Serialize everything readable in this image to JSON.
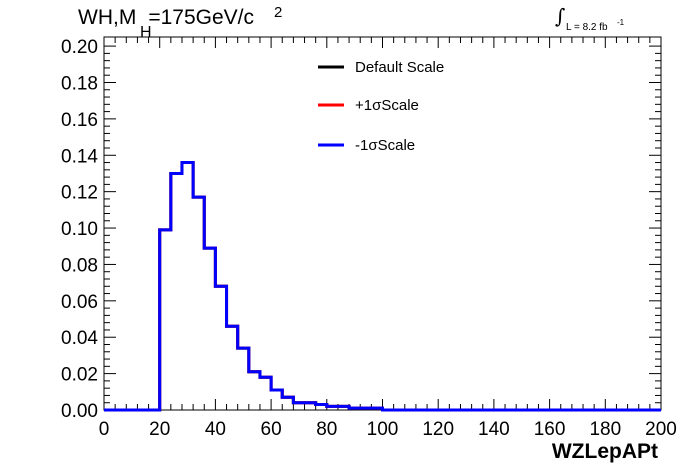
{
  "header": {
    "title_left": "WH,M",
    "title_sub": "H",
    "title_right": "=175GeV/c",
    "title_sup": "2",
    "lumi_integral": "∫",
    "lumi_text": "L = 8.2 fb",
    "lumi_sup": "-1"
  },
  "chart_data": {
    "type": "line",
    "style": "step-histogram",
    "title": "",
    "xlabel": "WZLepAPt",
    "ylabel": "",
    "xlim": [
      0,
      200
    ],
    "ylim": [
      0,
      0.205
    ],
    "x_ticks": [
      0,
      20,
      40,
      60,
      80,
      100,
      120,
      140,
      160,
      180,
      200
    ],
    "x_tick_labels": [
      "0",
      "20",
      "40",
      "60",
      "80",
      "100",
      "120",
      "140",
      "160",
      "180",
      "200"
    ],
    "y_ticks": [
      0,
      0.02,
      0.04,
      0.06,
      0.08,
      0.1,
      0.12,
      0.14,
      0.16,
      0.18,
      0.2
    ],
    "y_tick_labels": [
      "0.00",
      "0.02",
      "0.04",
      "0.06",
      "0.08",
      "0.10",
      "0.12",
      "0.14",
      "0.16",
      "0.18",
      "0.20"
    ],
    "bin_edges": [
      0,
      4,
      8,
      12,
      16,
      20,
      24,
      28,
      32,
      36,
      40,
      44,
      48,
      52,
      56,
      60,
      64,
      68,
      72,
      76,
      80,
      84,
      88,
      92,
      96,
      100,
      104,
      108,
      112,
      116,
      120,
      124,
      128,
      132,
      136,
      140,
      144,
      148,
      152,
      156,
      160,
      164,
      168,
      172,
      176,
      180,
      184,
      188,
      192,
      196,
      200
    ],
    "series": [
      {
        "name": "Default Scale",
        "color": "#000000",
        "values": [
          0,
          0,
          0,
          0,
          0,
          0.099,
          0.13,
          0.136,
          0.117,
          0.089,
          0.068,
          0.046,
          0.034,
          0.021,
          0.018,
          0.011,
          0.007,
          0.004,
          0.004,
          0.003,
          0.002,
          0.002,
          0.001,
          0.001,
          0.001,
          0,
          0,
          0,
          0,
          0,
          0,
          0,
          0,
          0,
          0,
          0,
          0,
          0,
          0,
          0,
          0,
          0,
          0,
          0,
          0,
          0,
          0,
          0,
          0,
          0
        ]
      },
      {
        "name": "+1σScale",
        "color": "#ff0000",
        "values": [
          0,
          0,
          0,
          0,
          0,
          0.099,
          0.13,
          0.136,
          0.117,
          0.089,
          0.068,
          0.046,
          0.034,
          0.021,
          0.018,
          0.011,
          0.007,
          0.004,
          0.004,
          0.003,
          0.002,
          0.002,
          0.001,
          0.001,
          0.001,
          0,
          0,
          0,
          0,
          0,
          0,
          0,
          0,
          0,
          0,
          0,
          0,
          0,
          0,
          0,
          0,
          0,
          0,
          0,
          0,
          0,
          0,
          0,
          0,
          0
        ]
      },
      {
        "name": "-1σScale",
        "color": "#0000ff",
        "values": [
          0,
          0,
          0,
          0,
          0,
          0.099,
          0.13,
          0.136,
          0.117,
          0.089,
          0.068,
          0.046,
          0.034,
          0.021,
          0.018,
          0.011,
          0.007,
          0.004,
          0.004,
          0.003,
          0.002,
          0.002,
          0.001,
          0.001,
          0.001,
          0,
          0,
          0,
          0,
          0,
          0,
          0,
          0,
          0,
          0,
          0,
          0,
          0,
          0,
          0,
          0,
          0,
          0,
          0,
          0,
          0,
          0,
          0,
          0,
          0
        ]
      }
    ],
    "grid": false,
    "legend_position": "top-center"
  }
}
